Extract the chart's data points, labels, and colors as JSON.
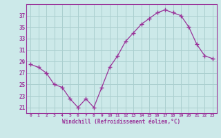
{
  "x": [
    0,
    1,
    2,
    3,
    4,
    5,
    6,
    7,
    8,
    9,
    10,
    11,
    12,
    13,
    14,
    15,
    16,
    17,
    18,
    19,
    20,
    21,
    22,
    23
  ],
  "y": [
    28.5,
    28.0,
    27.0,
    25.0,
    24.5,
    22.5,
    21.0,
    22.5,
    21.0,
    24.5,
    28.0,
    30.0,
    32.5,
    34.0,
    35.5,
    36.5,
    37.5,
    38.0,
    37.5,
    37.0,
    35.0,
    32.0,
    30.0,
    29.5
  ],
  "line_color": "#993399",
  "marker": "+",
  "marker_size": 4,
  "bg_color": "#cce9e9",
  "grid_color": "#aacfcf",
  "xlabel": "Windchill (Refroidissement éolien,°C)",
  "xlim": [
    -0.5,
    23.5
  ],
  "ylim": [
    20,
    39
  ],
  "yticks": [
    21,
    23,
    25,
    27,
    29,
    31,
    33,
    35,
    37
  ],
  "xtick_labels": [
    "0",
    "1",
    "2",
    "3",
    "4",
    "5",
    "6",
    "7",
    "8",
    "9",
    "10",
    "11",
    "12",
    "13",
    "14",
    "15",
    "16",
    "17",
    "18",
    "19",
    "20",
    "21",
    "22",
    "23"
  ],
  "tick_color": "#993399",
  "label_color": "#993399"
}
